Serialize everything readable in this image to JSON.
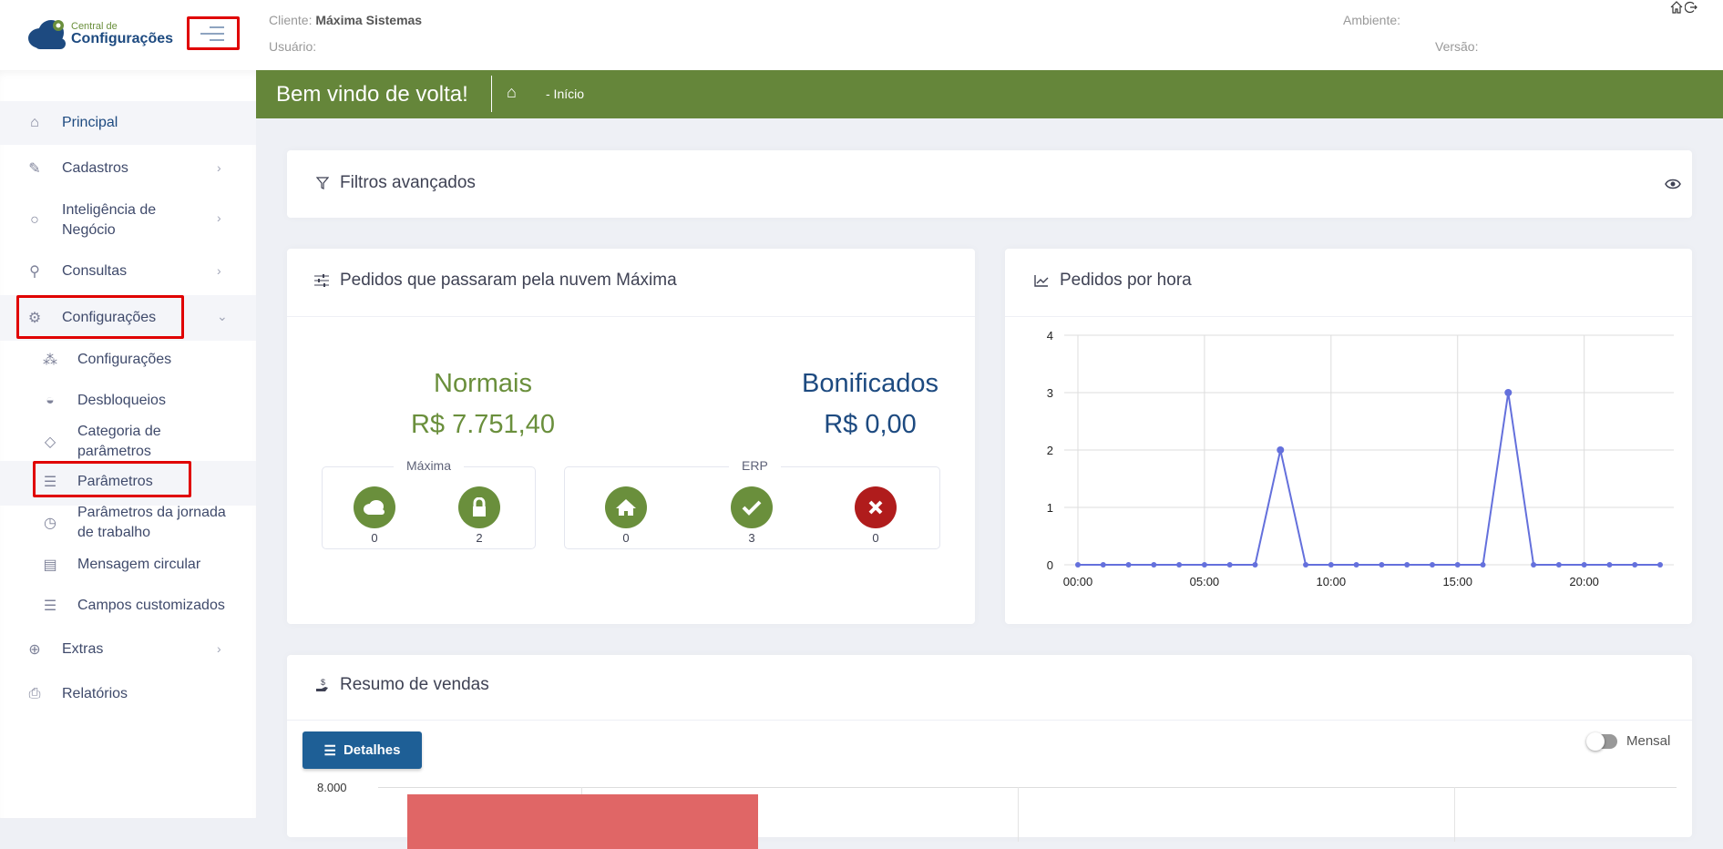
{
  "header": {
    "logo_line1": "Central de",
    "logo_line2": "Configurações",
    "client_label": "Cliente:",
    "client_value": "Máxima Sistemas",
    "user_label": "Usuário:",
    "env_label": "Ambiente:",
    "version_label": "Versão:",
    "icons": [
      "home-icon",
      "logout-icon"
    ]
  },
  "banner": {
    "title": "Bem vindo de volta!",
    "breadcrumb": "- Início",
    "color": "#65863a"
  },
  "sidebar": {
    "items": [
      {
        "label": "Principal",
        "icon": "home-icon"
      },
      {
        "label": "Cadastros",
        "icon": "edit-icon"
      },
      {
        "label": "Inteligência de Negócio",
        "icon": "bulb-icon"
      },
      {
        "label": "Consultas",
        "icon": "search-icon"
      },
      {
        "label": "Configurações",
        "icon": "gear-icon"
      },
      {
        "label": "Extras",
        "icon": "plus-circle-icon"
      },
      {
        "label": "Relatórios",
        "icon": "printer-icon"
      }
    ],
    "subitems": [
      {
        "label": "Configurações",
        "icon": "nodes-icon"
      },
      {
        "label": "Desbloqueios",
        "icon": "unlock-icon"
      },
      {
        "label": "Categoria de parâmetros",
        "icon": "tag-icon"
      },
      {
        "label": "Parâmetros",
        "icon": "list-icon"
      },
      {
        "label": "Parâmetros da jornada de trabalho",
        "icon": "clock-icon"
      },
      {
        "label": "Mensagem circular",
        "icon": "message-icon"
      },
      {
        "label": "Campos customizados",
        "icon": "fields-icon"
      }
    ]
  },
  "filters": {
    "title": "Filtros avançados"
  },
  "orders": {
    "title": "Pedidos que passaram pela nuvem Máxima",
    "normal_label": "Normais",
    "normal_value": "R$ 7.751,40",
    "bonus_label": "Bonificados",
    "bonus_value": "R$ 0,00",
    "maxima_legend": "Máxima",
    "maxima_counts": [
      "0",
      "2"
    ],
    "erp_legend": "ERP",
    "erp_counts": [
      "0",
      "3",
      "0"
    ],
    "green": "#6a8f3c",
    "red": "#b01c1c"
  },
  "hourly": {
    "title": "Pedidos por hora"
  },
  "sales": {
    "title": "Resumo de vendas",
    "details_button": "Detalhes",
    "toggle_label": "Mensal",
    "toggle_on": false,
    "ytick_top": "8.000",
    "bar_color": "#e06666"
  },
  "chart_data": {
    "type": "line",
    "x": [
      "00:00",
      "01:00",
      "02:00",
      "03:00",
      "04:00",
      "05:00",
      "06:00",
      "07:00",
      "08:00",
      "09:00",
      "10:00",
      "11:00",
      "12:00",
      "13:00",
      "14:00",
      "15:00",
      "16:00",
      "17:00",
      "18:00",
      "19:00",
      "20:00",
      "21:00",
      "22:00",
      "23:00"
    ],
    "values": [
      0,
      0,
      0,
      0,
      0,
      0,
      0,
      0,
      2,
      0,
      0,
      0,
      0,
      0,
      0,
      0,
      0,
      3,
      0,
      0,
      0,
      0,
      0,
      0
    ],
    "xtick_labels": [
      "00:00",
      "05:00",
      "10:00",
      "15:00",
      "20:00"
    ],
    "ylim": [
      0,
      4
    ],
    "yticks": [
      "0",
      "1",
      "2",
      "3",
      "4"
    ],
    "grid": true,
    "color": "#6470dc"
  }
}
